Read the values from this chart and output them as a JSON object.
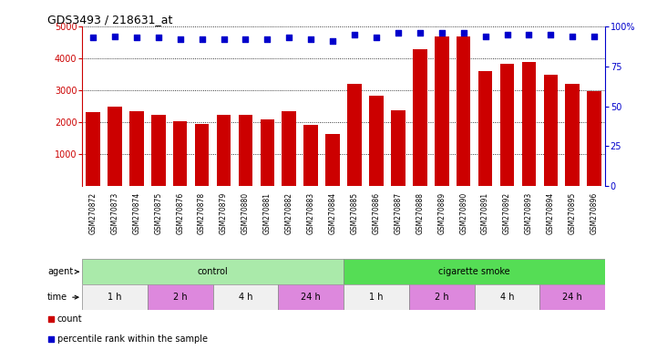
{
  "title": "GDS3493 / 218631_at",
  "samples": [
    "GSM270872",
    "GSM270873",
    "GSM270874",
    "GSM270875",
    "GSM270876",
    "GSM270878",
    "GSM270879",
    "GSM270880",
    "GSM270881",
    "GSM270882",
    "GSM270883",
    "GSM270884",
    "GSM270885",
    "GSM270886",
    "GSM270887",
    "GSM270888",
    "GSM270889",
    "GSM270890",
    "GSM270891",
    "GSM270892",
    "GSM270893",
    "GSM270894",
    "GSM270895",
    "GSM270896"
  ],
  "counts": [
    2320,
    2480,
    2340,
    2230,
    2020,
    1940,
    2220,
    2220,
    2100,
    2340,
    1930,
    1620,
    3200,
    2820,
    2380,
    4280,
    4680,
    4700,
    3600,
    3820,
    3900,
    3490,
    3200,
    2980
  ],
  "percentile_ranks": [
    93,
    94,
    93,
    93,
    92,
    92,
    92,
    92,
    92,
    93,
    92,
    91,
    95,
    93,
    96,
    96,
    96,
    96,
    94,
    95,
    95,
    95,
    94,
    94
  ],
  "bar_color": "#cc0000",
  "dot_color": "#0000cc",
  "ylim_left": [
    0,
    5000
  ],
  "ylim_right": [
    0,
    100
  ],
  "yticks_left": [
    1000,
    2000,
    3000,
    4000,
    5000
  ],
  "yticks_right": [
    0,
    25,
    50,
    75,
    100
  ],
  "yticklabels_right": [
    "0",
    "25",
    "50",
    "75",
    "100%"
  ],
  "agent_groups": [
    {
      "label": "control",
      "start": 0,
      "end": 12,
      "color": "#aaeaaa"
    },
    {
      "label": "cigarette smoke",
      "start": 12,
      "end": 24,
      "color": "#55dd55"
    }
  ],
  "time_groups": [
    {
      "label": "1 h",
      "start": 0,
      "end": 3,
      "color": "#f0f0f0"
    },
    {
      "label": "2 h",
      "start": 3,
      "end": 6,
      "color": "#dd88dd"
    },
    {
      "label": "4 h",
      "start": 6,
      "end": 9,
      "color": "#f0f0f0"
    },
    {
      "label": "24 h",
      "start": 9,
      "end": 12,
      "color": "#dd88dd"
    },
    {
      "label": "1 h",
      "start": 12,
      "end": 15,
      "color": "#f0f0f0"
    },
    {
      "label": "2 h",
      "start": 15,
      "end": 18,
      "color": "#dd88dd"
    },
    {
      "label": "4 h",
      "start": 18,
      "end": 21,
      "color": "#f0f0f0"
    },
    {
      "label": "24 h",
      "start": 21,
      "end": 24,
      "color": "#dd88dd"
    }
  ],
  "legend_count_color": "#cc0000",
  "legend_dot_color": "#0000cc",
  "bg_color": "#ffffff",
  "left_axis_color": "#cc0000",
  "right_axis_color": "#0000cc",
  "xtick_bg_color": "#cccccc"
}
